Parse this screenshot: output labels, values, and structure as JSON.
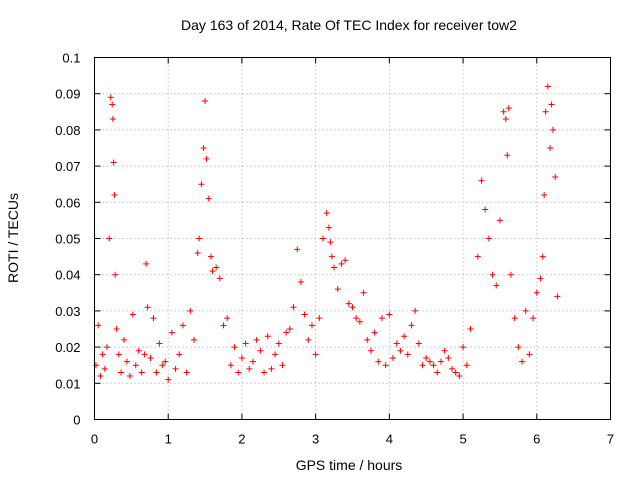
{
  "chart_data": {
    "type": "scatter",
    "title": "Day 163 of 2014, Rate Of TEC Index for receiver tow2",
    "xlabel": "GPS time / hours",
    "ylabel": "ROTI / TECUs",
    "xlim": [
      0,
      7
    ],
    "ylim": [
      0,
      0.1
    ],
    "xticks": [
      "0",
      "1",
      "2",
      "3",
      "4",
      "5",
      "6",
      "7"
    ],
    "yticks": [
      "0",
      "0.01",
      "0.02",
      "0.03",
      "0.04",
      "0.05",
      "0.06",
      "0.07",
      "0.08",
      "0.09",
      "0.1"
    ],
    "grid": true,
    "marker": "+",
    "color": "#ff0000",
    "series": [
      {
        "name": "tow2",
        "x": [
          0.02,
          0.05,
          0.08,
          0.11,
          0.14,
          0.17,
          0.2,
          0.22,
          0.24,
          0.25,
          0.26,
          0.27,
          0.28,
          0.3,
          0.33,
          0.36,
          0.4,
          0.44,
          0.48,
          0.52,
          0.56,
          0.6,
          0.64,
          0.68,
          0.7,
          0.72,
          0.76,
          0.8,
          0.84,
          0.88,
          0.92,
          0.96,
          1.0,
          1.05,
          1.1,
          1.15,
          1.2,
          1.25,
          1.3,
          1.35,
          1.4,
          1.42,
          1.45,
          1.48,
          1.5,
          1.52,
          1.55,
          1.58,
          1.6,
          1.65,
          1.7,
          1.75,
          1.8,
          1.85,
          1.9,
          1.95,
          2.0,
          2.05,
          2.1,
          2.15,
          2.2,
          2.25,
          2.3,
          2.35,
          2.4,
          2.45,
          2.5,
          2.55,
          2.6,
          2.65,
          2.7,
          2.75,
          2.8,
          2.85,
          2.9,
          2.95,
          3.0,
          3.05,
          3.1,
          3.15,
          3.18,
          3.2,
          3.22,
          3.25,
          3.3,
          3.35,
          3.4,
          3.45,
          3.5,
          3.55,
          3.6,
          3.65,
          3.7,
          3.75,
          3.8,
          3.85,
          3.9,
          3.95,
          4.0,
          4.05,
          4.1,
          4.15,
          4.2,
          4.25,
          4.3,
          4.35,
          4.4,
          4.45,
          4.5,
          4.55,
          4.6,
          4.65,
          4.7,
          4.75,
          4.8,
          4.85,
          4.9,
          4.95,
          5.0,
          5.05,
          5.1,
          5.2,
          5.25,
          5.3,
          5.35,
          5.4,
          5.45,
          5.5,
          5.55,
          5.58,
          5.6,
          5.62,
          5.65,
          5.7,
          5.75,
          5.8,
          5.85,
          5.9,
          5.95,
          6.0,
          6.05,
          6.08,
          6.1,
          6.12,
          6.15,
          6.18,
          6.2,
          6.22,
          6.25,
          6.28
        ],
        "y": [
          0.015,
          0.026,
          0.012,
          0.018,
          0.014,
          0.02,
          0.05,
          0.089,
          0.087,
          0.083,
          0.071,
          0.062,
          0.04,
          0.025,
          0.018,
          0.013,
          0.022,
          0.016,
          0.012,
          0.029,
          0.015,
          0.019,
          0.013,
          0.018,
          0.043,
          0.031,
          0.017,
          0.028,
          0.013,
          0.021,
          0.015,
          0.016,
          0.011,
          0.024,
          0.014,
          0.018,
          0.026,
          0.013,
          0.03,
          0.022,
          0.046,
          0.05,
          0.065,
          0.075,
          0.088,
          0.072,
          0.061,
          0.045,
          0.041,
          0.042,
          0.039,
          0.026,
          0.028,
          0.015,
          0.02,
          0.013,
          0.017,
          0.021,
          0.014,
          0.016,
          0.022,
          0.019,
          0.013,
          0.023,
          0.014,
          0.018,
          0.021,
          0.015,
          0.024,
          0.025,
          0.031,
          0.047,
          0.038,
          0.029,
          0.022,
          0.026,
          0.018,
          0.028,
          0.05,
          0.057,
          0.053,
          0.049,
          0.045,
          0.042,
          0.036,
          0.043,
          0.044,
          0.032,
          0.031,
          0.028,
          0.027,
          0.035,
          0.022,
          0.019,
          0.024,
          0.016,
          0.028,
          0.015,
          0.029,
          0.017,
          0.021,
          0.019,
          0.023,
          0.018,
          0.026,
          0.03,
          0.021,
          0.015,
          0.017,
          0.016,
          0.015,
          0.013,
          0.016,
          0.019,
          0.017,
          0.014,
          0.013,
          0.012,
          0.02,
          0.015,
          0.025,
          0.045,
          0.066,
          0.058,
          0.05,
          0.04,
          0.037,
          0.055,
          0.085,
          0.083,
          0.073,
          0.086,
          0.04,
          0.028,
          0.02,
          0.016,
          0.03,
          0.018,
          0.028,
          0.035,
          0.039,
          0.045,
          0.062,
          0.085,
          0.092,
          0.075,
          0.087,
          0.08,
          0.067,
          0.034
        ]
      }
    ]
  }
}
